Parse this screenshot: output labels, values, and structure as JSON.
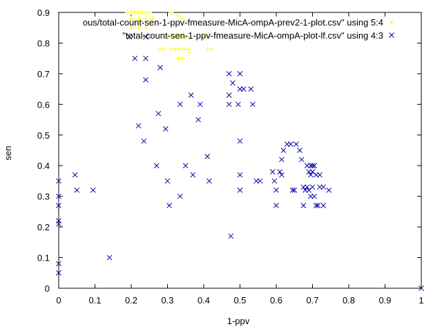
{
  "chart_data": {
    "type": "scatter",
    "xlabel": "1-ppv",
    "ylabel": "sen",
    "xlim": [
      0,
      1
    ],
    "ylim": [
      0,
      0.9
    ],
    "x_ticks": [
      "0",
      "0.1",
      "0.2",
      "0.3",
      "0.4",
      "0.5",
      "0.6",
      "0.7",
      "0.8",
      "0.9",
      "1"
    ],
    "y_ticks": [
      "0",
      "0.1",
      "0.2",
      "0.3",
      "0.4",
      "0.5",
      "0.6",
      "0.7",
      "0.8",
      "0.9"
    ],
    "legend_position": "top-right",
    "series": [
      {
        "name": "ous/total-count-sen-1-ppv-fmeasure-MicA-ompA-prev2-1-plot.csv\" using 5:4",
        "marker": "plus",
        "color": "#ffff00",
        "points": [
          [
            0.19,
            0.9
          ],
          [
            0.2,
            0.9
          ],
          [
            0.21,
            0.9
          ],
          [
            0.22,
            0.9
          ],
          [
            0.23,
            0.9
          ],
          [
            0.24,
            0.9
          ],
          [
            0.25,
            0.9
          ],
          [
            0.2,
            0.88
          ],
          [
            0.22,
            0.88
          ],
          [
            0.24,
            0.88
          ],
          [
            0.26,
            0.88
          ],
          [
            0.2,
            0.85
          ],
          [
            0.22,
            0.85
          ],
          [
            0.24,
            0.85
          ],
          [
            0.25,
            0.86
          ],
          [
            0.23,
            0.87
          ],
          [
            0.21,
            0.87
          ],
          [
            0.31,
            0.9
          ],
          [
            0.33,
            0.89
          ],
          [
            0.34,
            0.88
          ],
          [
            0.3,
            0.82
          ],
          [
            0.32,
            0.82
          ],
          [
            0.33,
            0.82
          ],
          [
            0.34,
            0.82
          ],
          [
            0.35,
            0.82
          ],
          [
            0.28,
            0.78
          ],
          [
            0.29,
            0.78
          ],
          [
            0.31,
            0.78
          ],
          [
            0.32,
            0.78
          ],
          [
            0.33,
            0.78
          ],
          [
            0.34,
            0.78
          ],
          [
            0.35,
            0.78
          ],
          [
            0.36,
            0.78
          ],
          [
            0.36,
            0.77
          ],
          [
            0.33,
            0.75
          ],
          [
            0.34,
            0.75
          ],
          [
            0.4,
            0.82
          ],
          [
            0.41,
            0.82
          ],
          [
            0.41,
            0.78
          ],
          [
            0.42,
            0.78
          ]
        ]
      },
      {
        "name": "\"total-count-sen-1-ppv-fmeasure-MicA-ompA-plot-lf.csv\" using 4:3",
        "marker": "cross",
        "color": "#0000a0",
        "points": [
          [
            0.0,
            0.35
          ],
          [
            0.0,
            0.3
          ],
          [
            0.0,
            0.27
          ],
          [
            0.0,
            0.22
          ],
          [
            0.0,
            0.21
          ],
          [
            0.0,
            0.08
          ],
          [
            0.0,
            0.05
          ],
          [
            0.045,
            0.37
          ],
          [
            0.05,
            0.32
          ],
          [
            0.095,
            0.32
          ],
          [
            0.14,
            0.1
          ],
          [
            0.195,
            0.82
          ],
          [
            0.21,
            0.75
          ],
          [
            0.24,
            0.75
          ],
          [
            0.24,
            0.82
          ],
          [
            0.24,
            0.68
          ],
          [
            0.22,
            0.53
          ],
          [
            0.235,
            0.48
          ],
          [
            0.27,
            0.4
          ],
          [
            0.275,
            0.57
          ],
          [
            0.28,
            0.72
          ],
          [
            0.295,
            0.52
          ],
          [
            0.3,
            0.35
          ],
          [
            0.305,
            0.27
          ],
          [
            0.335,
            0.6
          ],
          [
            0.335,
            0.3
          ],
          [
            0.35,
            0.4
          ],
          [
            0.365,
            0.63
          ],
          [
            0.37,
            0.37
          ],
          [
            0.385,
            0.55
          ],
          [
            0.39,
            0.6
          ],
          [
            0.41,
            0.43
          ],
          [
            0.415,
            0.35
          ],
          [
            0.47,
            0.7
          ],
          [
            0.47,
            0.63
          ],
          [
            0.47,
            0.6
          ],
          [
            0.48,
            0.67
          ],
          [
            0.475,
            0.17
          ],
          [
            0.495,
            0.6
          ],
          [
            0.5,
            0.7
          ],
          [
            0.5,
            0.65
          ],
          [
            0.51,
            0.65
          ],
          [
            0.5,
            0.48
          ],
          [
            0.5,
            0.37
          ],
          [
            0.5,
            0.32
          ],
          [
            0.53,
            0.65
          ],
          [
            0.535,
            0.6
          ],
          [
            0.545,
            0.35
          ],
          [
            0.555,
            0.35
          ],
          [
            0.59,
            0.38
          ],
          [
            0.595,
            0.35
          ],
          [
            0.6,
            0.32
          ],
          [
            0.6,
            0.27
          ],
          [
            0.61,
            0.38
          ],
          [
            0.615,
            0.37
          ],
          [
            0.615,
            0.42
          ],
          [
            0.62,
            0.45
          ],
          [
            0.63,
            0.47
          ],
          [
            0.64,
            0.47
          ],
          [
            0.645,
            0.32
          ],
          [
            0.65,
            0.32
          ],
          [
            0.655,
            0.47
          ],
          [
            0.665,
            0.45
          ],
          [
            0.67,
            0.42
          ],
          [
            0.675,
            0.33
          ],
          [
            0.675,
            0.27
          ],
          [
            0.68,
            0.32
          ],
          [
            0.685,
            0.4
          ],
          [
            0.685,
            0.33
          ],
          [
            0.69,
            0.38
          ],
          [
            0.69,
            0.32
          ],
          [
            0.695,
            0.3
          ],
          [
            0.695,
            0.37
          ],
          [
            0.695,
            0.4
          ],
          [
            0.7,
            0.4
          ],
          [
            0.7,
            0.38
          ],
          [
            0.7,
            0.33
          ],
          [
            0.705,
            0.4
          ],
          [
            0.705,
            0.3
          ],
          [
            0.71,
            0.37
          ],
          [
            0.71,
            0.27
          ],
          [
            0.715,
            0.27
          ],
          [
            0.72,
            0.37
          ],
          [
            0.72,
            0.33
          ],
          [
            0.73,
            0.33
          ],
          [
            0.73,
            0.27
          ],
          [
            0.745,
            0.32
          ],
          [
            1.0,
            0.0
          ]
        ]
      }
    ]
  }
}
